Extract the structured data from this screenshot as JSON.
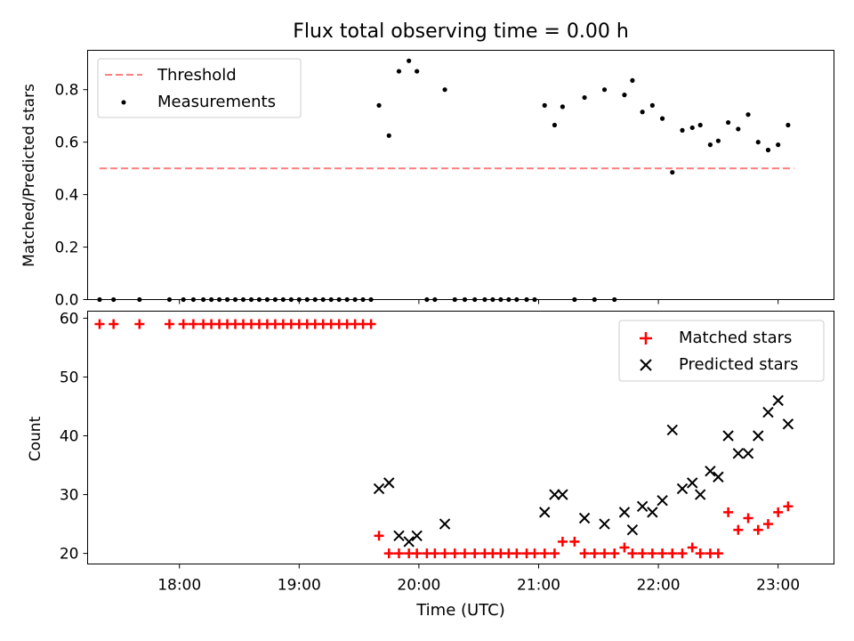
{
  "chart_data": [
    {
      "type": "scatter",
      "title": "Flux total observing time = 0.00 h",
      "xlabel": "",
      "ylabel": "Matched/Predicted stars",
      "ylim": [
        0,
        0.95
      ],
      "yticks": [
        "0.0",
        "0.2",
        "0.4",
        "0.6",
        "0.8"
      ],
      "ytick_values": [
        0.0,
        0.2,
        0.4,
        0.6,
        0.8
      ],
      "xlim": [
        "17:14",
        "23:28"
      ],
      "legend": {
        "position": "top-left",
        "entries": [
          "Threshold",
          "Measurements"
        ]
      },
      "threshold": {
        "name": "Threshold",
        "value": 0.5,
        "x_start": "17:20",
        "x_end": "23:08",
        "color": "#ff7f7f"
      },
      "series": [
        {
          "name": "Measurements",
          "color": "#000000",
          "points": [
            [
              "17:20",
              0
            ],
            [
              "17:27",
              0
            ],
            [
              "17:40",
              0
            ],
            [
              "17:55",
              0
            ],
            [
              "18:02",
              0
            ],
            [
              "18:07",
              0
            ],
            [
              "18:12",
              0
            ],
            [
              "18:16",
              0
            ],
            [
              "18:20",
              0
            ],
            [
              "18:24",
              0
            ],
            [
              "18:28",
              0
            ],
            [
              "18:32",
              0
            ],
            [
              "18:36",
              0
            ],
            [
              "18:40",
              0
            ],
            [
              "18:44",
              0
            ],
            [
              "18:48",
              0
            ],
            [
              "18:52",
              0
            ],
            [
              "18:56",
              0
            ],
            [
              "19:00",
              0
            ],
            [
              "19:04",
              0
            ],
            [
              "19:08",
              0
            ],
            [
              "19:12",
              0
            ],
            [
              "19:16",
              0
            ],
            [
              "19:20",
              0
            ],
            [
              "19:24",
              0
            ],
            [
              "19:28",
              0
            ],
            [
              "19:32",
              0
            ],
            [
              "19:36",
              0
            ],
            [
              "19:40",
              0.74
            ],
            [
              "19:45",
              0.625
            ],
            [
              "19:50",
              0.87
            ],
            [
              "19:55",
              0.91
            ],
            [
              "19:59",
              0.87
            ],
            [
              "20:04",
              0
            ],
            [
              "20:08",
              0
            ],
            [
              "20:13",
              0.8
            ],
            [
              "20:18",
              0
            ],
            [
              "20:23",
              0
            ],
            [
              "20:28",
              0
            ],
            [
              "20:33",
              0
            ],
            [
              "20:37",
              0
            ],
            [
              "20:41",
              0
            ],
            [
              "20:45",
              0
            ],
            [
              "20:49",
              0
            ],
            [
              "20:54",
              0
            ],
            [
              "20:58",
              0
            ],
            [
              "21:03",
              0.74
            ],
            [
              "21:08",
              0.665
            ],
            [
              "21:12",
              0.735
            ],
            [
              "21:18",
              0
            ],
            [
              "21:23",
              0.77
            ],
            [
              "21:28",
              0
            ],
            [
              "21:33",
              0.8
            ],
            [
              "21:38",
              0
            ],
            [
              "21:43",
              0.78
            ],
            [
              "21:47",
              0.835
            ],
            [
              "21:52",
              0.715
            ],
            [
              "21:57",
              0.74
            ],
            [
              "22:02",
              0.69
            ],
            [
              "22:07",
              0.485
            ],
            [
              "22:12",
              0.645
            ],
            [
              "22:17",
              0.655
            ],
            [
              "22:21",
              0.665
            ],
            [
              "22:26",
              0.59
            ],
            [
              "22:30",
              0.605
            ],
            [
              "22:35",
              0.675
            ],
            [
              "22:40",
              0.65
            ],
            [
              "22:45",
              0.705
            ],
            [
              "22:50",
              0.6
            ],
            [
              "22:55",
              0.57
            ],
            [
              "23:00",
              0.59
            ],
            [
              "23:05",
              0.665
            ]
          ]
        }
      ]
    },
    {
      "type": "scatter",
      "title": "",
      "xlabel": "Time (UTC)",
      "ylabel": "Count",
      "ylim": [
        18.2,
        61.2
      ],
      "yticks": [
        "20",
        "30",
        "40",
        "50",
        "60"
      ],
      "ytick_values": [
        20,
        30,
        40,
        50,
        60
      ],
      "xlim": [
        "17:14",
        "23:28"
      ],
      "xticks": [
        "18:00",
        "19:00",
        "20:00",
        "21:00",
        "22:00",
        "23:00"
      ],
      "legend": {
        "position": "top-right",
        "entries": [
          "Matched stars",
          "Predicted stars"
        ]
      },
      "series": [
        {
          "name": "Matched stars",
          "marker": "+",
          "color": "#ff0000",
          "points": [
            [
              "17:20",
              59
            ],
            [
              "17:27",
              59
            ],
            [
              "17:40",
              59
            ],
            [
              "17:55",
              59
            ],
            [
              "18:02",
              59
            ],
            [
              "18:07",
              59
            ],
            [
              "18:12",
              59
            ],
            [
              "18:16",
              59
            ],
            [
              "18:20",
              59
            ],
            [
              "18:24",
              59
            ],
            [
              "18:28",
              59
            ],
            [
              "18:32",
              59
            ],
            [
              "18:36",
              59
            ],
            [
              "18:40",
              59
            ],
            [
              "18:44",
              59
            ],
            [
              "18:48",
              59
            ],
            [
              "18:52",
              59
            ],
            [
              "18:56",
              59
            ],
            [
              "19:00",
              59
            ],
            [
              "19:04",
              59
            ],
            [
              "19:08",
              59
            ],
            [
              "19:12",
              59
            ],
            [
              "19:16",
              59
            ],
            [
              "19:20",
              59
            ],
            [
              "19:24",
              59
            ],
            [
              "19:28",
              59
            ],
            [
              "19:32",
              59
            ],
            [
              "19:36",
              59
            ],
            [
              "19:40",
              23
            ],
            [
              "19:45",
              20
            ],
            [
              "19:50",
              20
            ],
            [
              "19:55",
              20
            ],
            [
              "19:59",
              20
            ],
            [
              "20:04",
              20
            ],
            [
              "20:08",
              20
            ],
            [
              "20:13",
              20
            ],
            [
              "20:18",
              20
            ],
            [
              "20:23",
              20
            ],
            [
              "20:28",
              20
            ],
            [
              "20:33",
              20
            ],
            [
              "20:37",
              20
            ],
            [
              "20:41",
              20
            ],
            [
              "20:45",
              20
            ],
            [
              "20:49",
              20
            ],
            [
              "20:54",
              20
            ],
            [
              "20:58",
              20
            ],
            [
              "21:03",
              20
            ],
            [
              "21:08",
              20
            ],
            [
              "21:12",
              22
            ],
            [
              "21:18",
              22
            ],
            [
              "21:23",
              20
            ],
            [
              "21:28",
              20
            ],
            [
              "21:33",
              20
            ],
            [
              "21:38",
              20
            ],
            [
              "21:43",
              21
            ],
            [
              "21:47",
              20
            ],
            [
              "21:52",
              20
            ],
            [
              "21:57",
              20
            ],
            [
              "22:02",
              20
            ],
            [
              "22:07",
              20
            ],
            [
              "22:12",
              20
            ],
            [
              "22:17",
              21
            ],
            [
              "22:21",
              20
            ],
            [
              "22:26",
              20
            ],
            [
              "22:30",
              20
            ],
            [
              "22:35",
              27
            ],
            [
              "22:40",
              24
            ],
            [
              "22:45",
              26
            ],
            [
              "22:50",
              24
            ],
            [
              "22:55",
              25
            ],
            [
              "23:00",
              27
            ],
            [
              "23:05",
              28
            ]
          ]
        },
        {
          "name": "Predicted stars",
          "marker": "x",
          "color": "#000000",
          "points": [
            [
              "19:40",
              31
            ],
            [
              "19:45",
              32
            ],
            [
              "19:50",
              23
            ],
            [
              "19:55",
              22
            ],
            [
              "19:59",
              23
            ],
            [
              "20:13",
              25
            ],
            [
              "21:03",
              27
            ],
            [
              "21:08",
              30
            ],
            [
              "21:12",
              30
            ],
            [
              "21:23",
              26
            ],
            [
              "21:33",
              25
            ],
            [
              "21:43",
              27
            ],
            [
              "21:47",
              24
            ],
            [
              "21:52",
              28
            ],
            [
              "21:57",
              27
            ],
            [
              "22:02",
              29
            ],
            [
              "22:07",
              41
            ],
            [
              "22:12",
              31
            ],
            [
              "22:17",
              32
            ],
            [
              "22:21",
              30
            ],
            [
              "22:26",
              34
            ],
            [
              "22:30",
              33
            ],
            [
              "22:35",
              40
            ],
            [
              "22:40",
              37
            ],
            [
              "22:45",
              37
            ],
            [
              "22:50",
              40
            ],
            [
              "22:55",
              44
            ],
            [
              "23:00",
              46
            ],
            [
              "23:05",
              42
            ]
          ]
        }
      ]
    }
  ]
}
